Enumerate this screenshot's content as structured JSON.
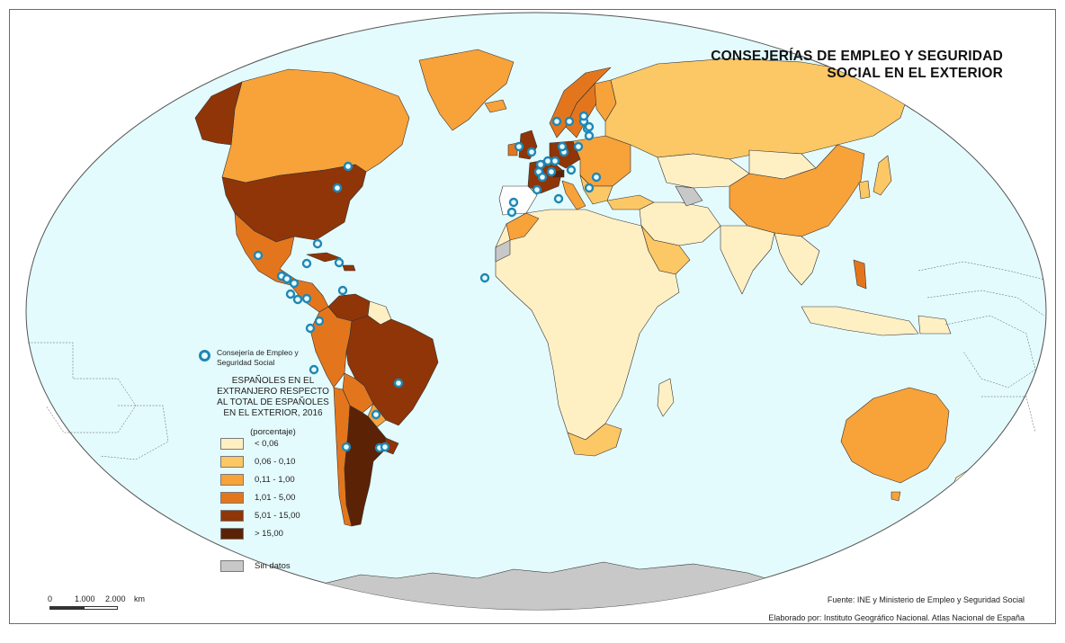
{
  "map": {
    "title_line1": "CONSEJERÍAS DE EMPLEO Y SEGURIDAD",
    "title_line2": "SOCIAL EN EL EXTERIOR",
    "office_legend_line1": "Consejería de Empleo y",
    "office_legend_line2": "Seguridad Social",
    "legend_title_lines": [
      "ESPAÑOLES EN EL",
      "EXTRANJERO RESPECTO",
      "AL TOTAL DE ESPAÑOLES",
      "EN EL EXTERIOR, 2016"
    ],
    "legend_subtitle": "(porcentaje)",
    "classes": [
      {
        "label": "< 0,06",
        "color": "#fff0c4"
      },
      {
        "label": "0,06 - 0,10",
        "color": "#fcc765"
      },
      {
        "label": "0,11 - 1,00",
        "color": "#f8a23a"
      },
      {
        "label": "1,01 - 5,00",
        "color": "#e3761d"
      },
      {
        "label": "5,01 - 15,00",
        "color": "#8f3508"
      },
      {
        "label": "> 15,00",
        "color": "#5c2206"
      }
    ],
    "no_data": {
      "label": "Sin datos",
      "color": "#c8c8c8"
    },
    "scale": {
      "tick0": "0",
      "tick1": "1.000",
      "tick2": "2.000",
      "unit": "km"
    },
    "source": "Fuente: INE y Ministerio de Empleo y Seguridad Social",
    "credits": "Elaborado por: Instituto Geográfico Nacional. Atlas Nacional de España",
    "colors": {
      "ocean": "#e4fbfd",
      "border": "#333333",
      "office_symbol": "#1e87b5"
    }
  }
}
